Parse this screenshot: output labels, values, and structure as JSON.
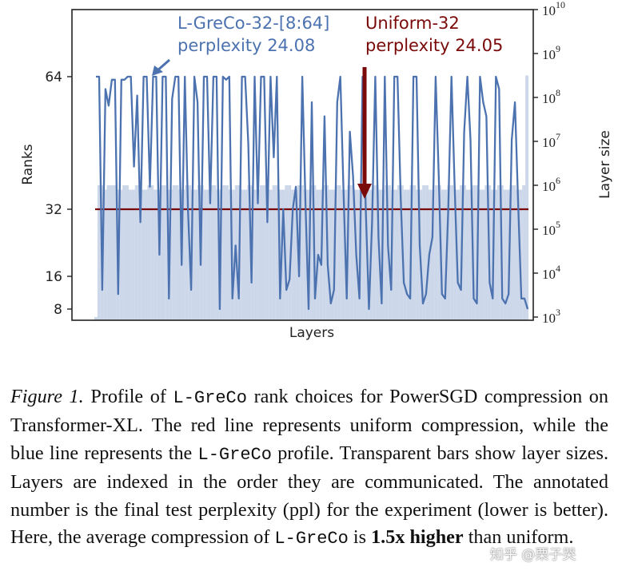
{
  "chart_data": {
    "type": "line+bar",
    "xlabel": "Layers",
    "ylabel_left": "Ranks",
    "ylabel_right": "Layer size",
    "left_yticks": [
      "8",
      "16",
      "32",
      "64"
    ],
    "right_yticks": [
      {
        "base": "10",
        "exp": "3"
      },
      {
        "base": "10",
        "exp": "4"
      },
      {
        "base": "10",
        "exp": "5"
      },
      {
        "base": "10",
        "exp": "6"
      },
      {
        "base": "10",
        "exp": "7"
      },
      {
        "base": "10",
        "exp": "8"
      },
      {
        "base": "10",
        "exp": "9"
      },
      {
        "base": "10",
        "exp": "10"
      }
    ],
    "right_ylim_log10": [
      3,
      10
    ],
    "legend_blue": {
      "name": "L-GreCo-32-[8:64]",
      "ppl": "perplexity 24.08",
      "color": "#4c72b0"
    },
    "legend_red": {
      "name": "Uniform-32",
      "ppl": "perplexity 24.05",
      "color": "#7a0a0a"
    },
    "uniform_rank": 32,
    "layer_sizes_log10": [
      3.0,
      6.0,
      6.0,
      5.9,
      6.0,
      6.0,
      6.0,
      5.9,
      5.9,
      6.0,
      6.0,
      5.9,
      5.9,
      6.0,
      6.0,
      5.9,
      5.9,
      6.0,
      6.0,
      5.9,
      5.9,
      6.0,
      6.0,
      5.9,
      5.9,
      6.0,
      6.0,
      5.9,
      5.9,
      6.0,
      6.0,
      5.9,
      5.9,
      6.0,
      6.0,
      5.9,
      5.9,
      6.0,
      6.0,
      5.9,
      5.9,
      6.0,
      6.0,
      5.9,
      5.9,
      6.0,
      6.0,
      5.9,
      5.9,
      6.0,
      6.0,
      5.9,
      5.9,
      6.0,
      6.0,
      5.9,
      5.9,
      6.0,
      6.0,
      5.9,
      5.9,
      6.0,
      6.0,
      5.9,
      5.9,
      6.0,
      6.0,
      5.9,
      5.9,
      6.0,
      6.0,
      5.9,
      5.9,
      6.0,
      6.0,
      5.9,
      5.9,
      6.0,
      6.0,
      5.9,
      5.9,
      6.0,
      6.0,
      5.9,
      5.9,
      6.0,
      6.0,
      5.9,
      5.9,
      6.0,
      6.0,
      5.9,
      5.9,
      6.0,
      6.0,
      5.9,
      5.9,
      6.0,
      6.0,
      5.9,
      5.9,
      6.0,
      6.0,
      5.9,
      5.9,
      6.0,
      6.0,
      5.9,
      5.9,
      6.0,
      6.0,
      5.9,
      5.9,
      6.0,
      6.0,
      5.9,
      5.9,
      6.0,
      6.0,
      5.9,
      5.9,
      6.0,
      6.0,
      5.9,
      5.9,
      6.0,
      6.0,
      5.9,
      5.9,
      6.0,
      6.0,
      5.9,
      5.9,
      6.0,
      6.0,
      5.9,
      5.9,
      6.0,
      8.5
    ],
    "ranks_blue": [
      64,
      64,
      12,
      60,
      55,
      63,
      63,
      11,
      63,
      63,
      64,
      64,
      40,
      58,
      28,
      64,
      64,
      36,
      64,
      64,
      20,
      64,
      64,
      10,
      57,
      64,
      64,
      18,
      64,
      32,
      12,
      64,
      56,
      18,
      64,
      64,
      33,
      64,
      64,
      8,
      64,
      63,
      64,
      10,
      22,
      10,
      64,
      64,
      45,
      14,
      64,
      33,
      64,
      64,
      28,
      64,
      42,
      64,
      10,
      32,
      12,
      15,
      32,
      36,
      16,
      64,
      33,
      8,
      56,
      10,
      20,
      18,
      52,
      18,
      9,
      12,
      56,
      64,
      35,
      10,
      48,
      38,
      20,
      10,
      64,
      32,
      8,
      28,
      64,
      24,
      9,
      64,
      22,
      12,
      64,
      64,
      34,
      14,
      11,
      10,
      64,
      64,
      22,
      9,
      11,
      20,
      24,
      64,
      38,
      11,
      10,
      32,
      64,
      36,
      14,
      12,
      48,
      64,
      46,
      10,
      9,
      64,
      56,
      52,
      14,
      10,
      64,
      60,
      10,
      9,
      11,
      46,
      56,
      33,
      10,
      10,
      8
    ]
  },
  "caption": {
    "label": "Figure 1.",
    "part1": " Profile of ",
    "mono1": "L-GreCo",
    "part2": " rank choices for PowerSGD compression on Transformer-XL. The red line represents uniform compression, while the blue line represents the ",
    "mono2": "L-GreCo",
    "part3": " profile. Transparent bars show layer sizes. Layers are indexed in the order they are communicated. The annotated number is the final test perplexity (ppl) for the experiment (lower is better). Here, the average compression of ",
    "mono3": "L-GreCo",
    "part4": " is ",
    "bold": "1.5x higher",
    "part5": " than uniform."
  },
  "watermark": "知乎 @栗子哭"
}
